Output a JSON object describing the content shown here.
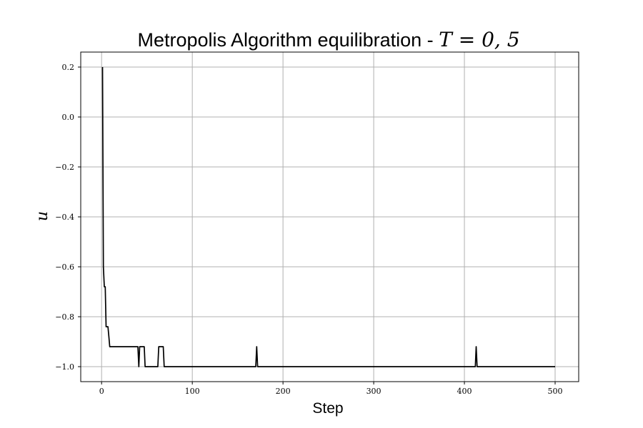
{
  "chart_data": {
    "type": "line",
    "title": "Metropolis Algorithm equilibration - ",
    "title_math": "T = 0, 5",
    "xlabel": "Step",
    "ylabel": "u",
    "xlim": [
      -23,
      526
    ],
    "ylim": [
      -1.06,
      0.26
    ],
    "xticks": [
      0,
      100,
      200,
      300,
      400,
      500
    ],
    "xtick_labels": [
      "0",
      "100",
      "200",
      "300",
      "400",
      "500"
    ],
    "yticks": [
      0.2,
      0.0,
      -0.2,
      -0.4,
      -0.6,
      -0.8,
      -1.0
    ],
    "ytick_labels": [
      "0.2",
      "0.0",
      "−0.2",
      "−0.4",
      "−0.6",
      "−0.8",
      "−1.0"
    ],
    "grid": true,
    "colors": {
      "line": "#000000",
      "grid": "#b0b0b0"
    },
    "series": [
      {
        "x": [
          1,
          2,
          3,
          4,
          5,
          6,
          7,
          8,
          9,
          10,
          40,
          41,
          42,
          43,
          47,
          48,
          62,
          63,
          68,
          69,
          170,
          171,
          172,
          412,
          413,
          414,
          500
        ],
        "y": [
          0.2,
          -0.6,
          -0.68,
          -0.68,
          -0.84,
          -0.84,
          -0.84,
          -0.88,
          -0.92,
          -0.92,
          -0.92,
          -1.0,
          -0.92,
          -0.92,
          -0.92,
          -1.0,
          -1.0,
          -0.92,
          -0.92,
          -1.0,
          -1.0,
          -0.92,
          -1.0,
          -1.0,
          -0.92,
          -1.0,
          -1.0
        ]
      }
    ]
  }
}
